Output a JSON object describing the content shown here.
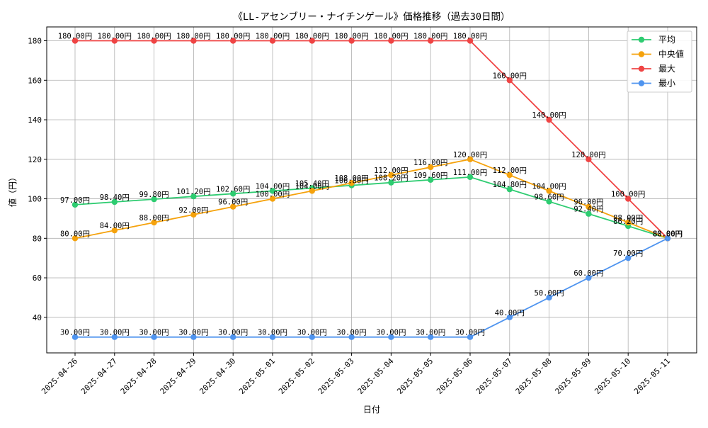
{
  "chart_data": {
    "type": "line",
    "title": "《LL-アセンブリー・ナイチンゲール》価格推移（過去30日間）",
    "xlabel": "日付",
    "ylabel": "値（円）",
    "ylim": [
      22,
      187
    ],
    "yticks": [
      40,
      60,
      80,
      100,
      120,
      140,
      160,
      180
    ],
    "grid": true,
    "legend_position": "top-right",
    "value_suffix": "円",
    "categories": [
      "2025-04-26",
      "2025-04-27",
      "2025-04-28",
      "2025-04-29",
      "2025-04-30",
      "2025-05-01",
      "2025-05-02",
      "2025-05-03",
      "2025-05-04",
      "2025-05-05",
      "2025-05-06",
      "2025-05-07",
      "2025-05-08",
      "2025-05-09",
      "2025-05-10",
      "2025-05-11"
    ],
    "series": [
      {
        "name": "平均",
        "color": "#2ecc71",
        "values": [
          97.0,
          98.4,
          99.8,
          101.2,
          102.6,
          104.0,
          105.4,
          106.8,
          108.2,
          109.6,
          111.0,
          104.8,
          98.6,
          92.4,
          86.2,
          80.0
        ]
      },
      {
        "name": "中央値",
        "color": "#f5a20c",
        "values": [
          80.0,
          84.0,
          88.0,
          92.0,
          96.0,
          100.0,
          104.0,
          108.0,
          112.0,
          116.0,
          120.0,
          112.0,
          104.0,
          96.0,
          88.0,
          80.0
        ]
      },
      {
        "name": "最大",
        "color": "#ef4444",
        "values": [
          180.0,
          180.0,
          180.0,
          180.0,
          180.0,
          180.0,
          180.0,
          180.0,
          180.0,
          180.0,
          180.0,
          160.0,
          140.0,
          120.0,
          100.0,
          80.0
        ]
      },
      {
        "name": "最小",
        "color": "#4f94ef",
        "values": [
          30.0,
          30.0,
          30.0,
          30.0,
          30.0,
          30.0,
          30.0,
          30.0,
          30.0,
          30.0,
          30.0,
          40.0,
          50.0,
          60.0,
          70.0,
          80.0
        ]
      }
    ]
  }
}
